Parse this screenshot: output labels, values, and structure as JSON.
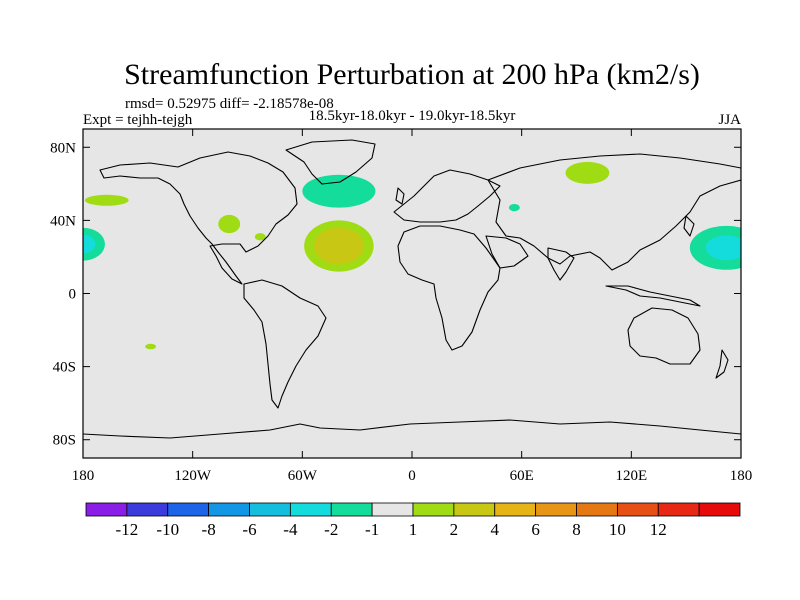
{
  "chart_data": {
    "type": "map-contour",
    "title": "Streamfunction Perturbation at 200 hPa (km2/s)",
    "stats_line": "rmsd= 0.52975 diff= -2.18578e-08",
    "period_line": "18.5kyr-18.0kyr - 19.0kyr-18.5kyr",
    "left_label": "Expt = tejhh-tejgh",
    "right_label": "JJA",
    "lon_range": [
      -180,
      180
    ],
    "lat_range": [
      -90,
      90
    ],
    "x_ticks": [
      {
        "lon": -180,
        "label": "180"
      },
      {
        "lon": -120,
        "label": "120W"
      },
      {
        "lon": -60,
        "label": "60W"
      },
      {
        "lon": 0,
        "label": "0"
      },
      {
        "lon": 60,
        "label": "60E"
      },
      {
        "lon": 120,
        "label": "120E"
      },
      {
        "lon": 180,
        "label": "180"
      }
    ],
    "y_ticks": [
      {
        "lat": 80,
        "label": "80N"
      },
      {
        "lat": 40,
        "label": "40N"
      },
      {
        "lat": 0,
        "label": "0"
      },
      {
        "lat": -40,
        "label": "40S"
      },
      {
        "lat": -80,
        "label": "80S"
      }
    ],
    "colorbar": {
      "colors": [
        "#8a1ee6",
        "#3c3cdc",
        "#1e64e6",
        "#1496e6",
        "#14bedc",
        "#14dcdc",
        "#14dc9a",
        "#e6e6e6",
        "#a0dc14",
        "#c8c814",
        "#e6b414",
        "#e69614",
        "#e67814",
        "#e65014",
        "#e62814",
        "#e60a0a"
      ],
      "boundaries": [
        -12,
        -10,
        -8,
        -6,
        -4,
        -2,
        -1,
        1,
        2,
        4,
        6,
        8,
        10,
        12
      ],
      "labels": [
        "-12",
        "-10",
        "-8",
        "-6",
        "-4",
        "-2",
        "-1",
        "1",
        "2",
        "4",
        "6",
        "8",
        "10",
        "12"
      ]
    },
    "anomalies": [
      {
        "name": "north-atlantic-positive",
        "lon": -40,
        "lat": 26,
        "rlon": 19,
        "rlat": 14,
        "value": 3.5
      },
      {
        "name": "east-pacific-positive-left",
        "lon": -100,
        "lat": 38,
        "rlon": 6,
        "rlat": 5,
        "value": 1.5
      },
      {
        "name": "gulf-positive-small",
        "lon": -83,
        "lat": 31,
        "rlon": 3,
        "rlat": 2,
        "value": 1.5
      },
      {
        "name": "north-pacific-positive",
        "lon": -167,
        "lat": 51,
        "rlon": 12,
        "rlat": 3,
        "value": 1.5
      },
      {
        "name": "central-asia-positive",
        "lon": 96,
        "lat": 66,
        "rlon": 12,
        "rlat": 6,
        "value": 1.5
      },
      {
        "name": "south-pacific-positive-small",
        "lon": -143,
        "lat": -29,
        "rlon": 3,
        "rlat": 1.5,
        "value": 1.5
      },
      {
        "name": "north-atlantic-negative",
        "lon": -40,
        "lat": 56,
        "rlon": 20,
        "rlat": 9,
        "value": -1.5
      },
      {
        "name": "west-pacific-negative",
        "lon": 172,
        "lat": 25,
        "rlon": 20,
        "rlat": 12,
        "value": -2.5
      },
      {
        "name": "east-pacific-negative-edge",
        "lon": -180,
        "lat": 27,
        "rlon": 12,
        "rlat": 9,
        "value": -2.5
      },
      {
        "name": "caspian-negative-small",
        "lon": 56,
        "lat": 47,
        "rlon": 3,
        "rlat": 2,
        "value": -1.5
      }
    ]
  }
}
